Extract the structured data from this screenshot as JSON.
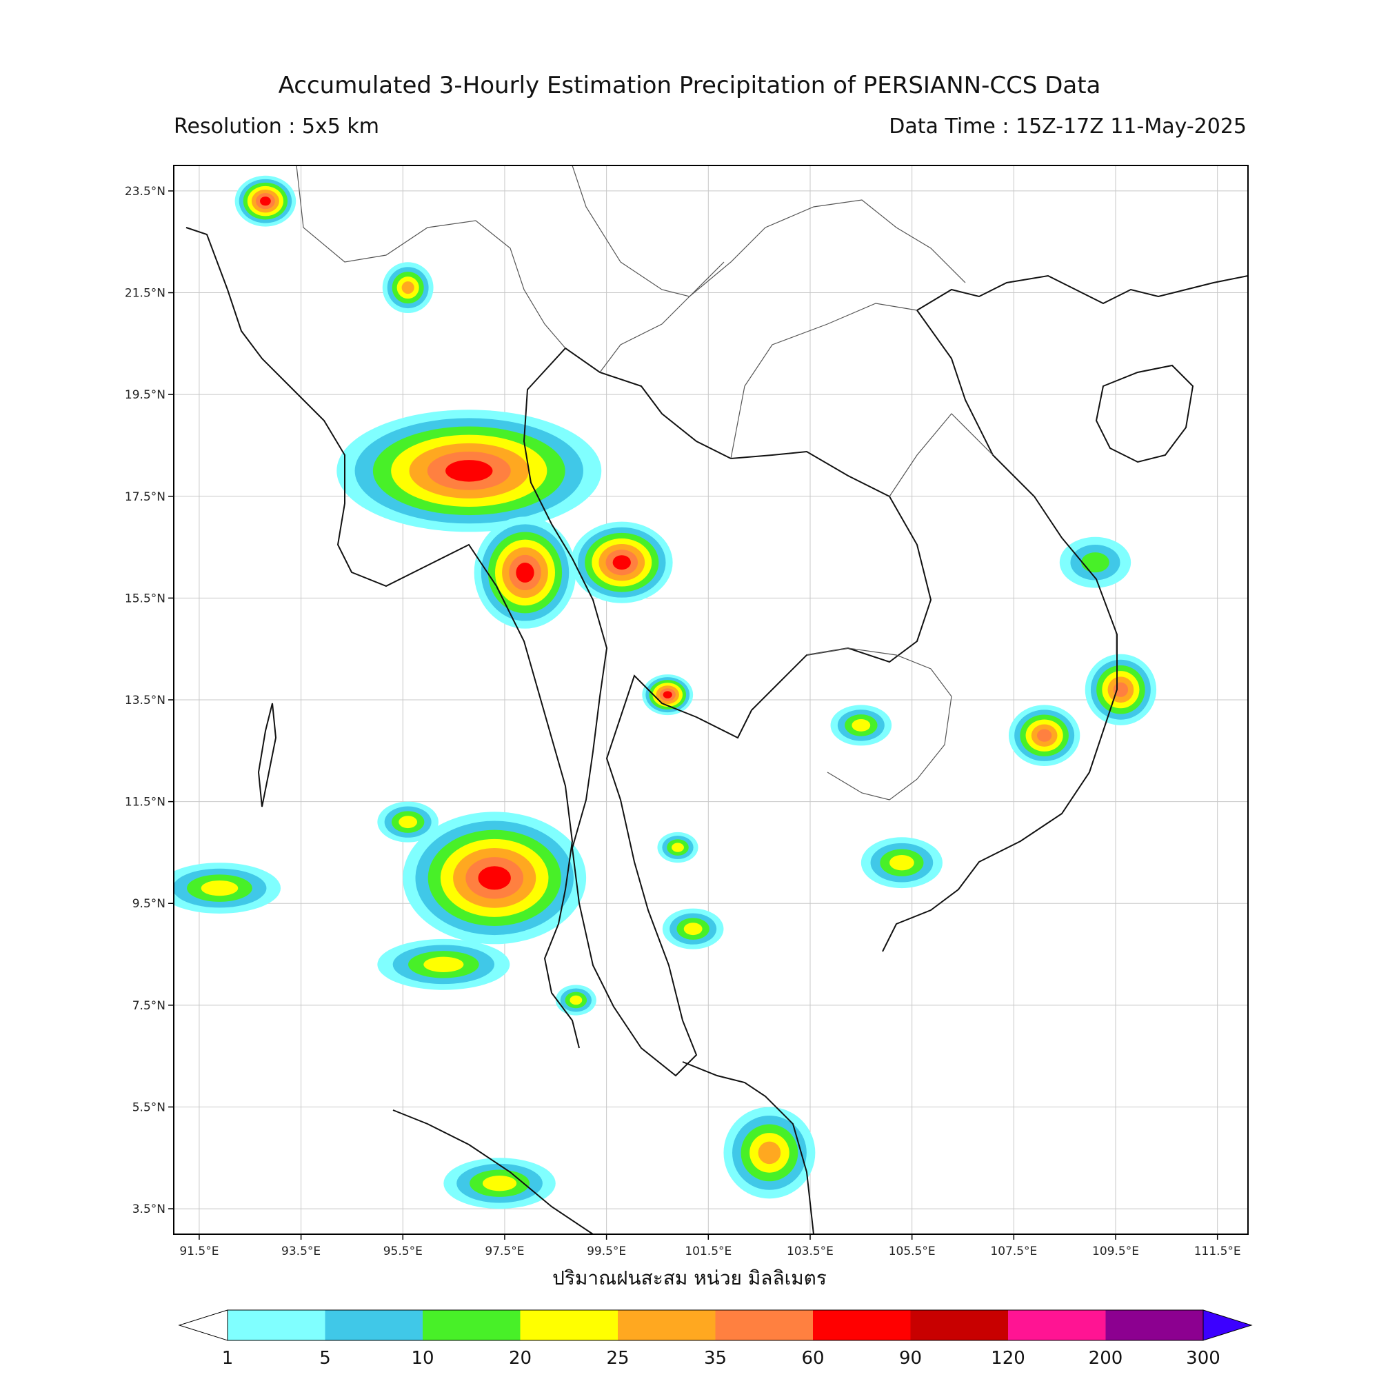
{
  "header": {
    "title": "Accumulated 3-Hourly Estimation Precipitation of PERSIANN-CCS Data",
    "resolution": "Resolution : 5x5 km",
    "data_time": "Data Time : 15Z-17Z 11-May-2025"
  },
  "axes": {
    "lon_ticks": [
      "91.5°E",
      "93.5°E",
      "95.5°E",
      "97.5°E",
      "99.5°E",
      "101.5°E",
      "103.5°E",
      "105.5°E",
      "107.5°E",
      "109.5°E",
      "111.5°E"
    ],
    "lat_ticks": [
      "23.5°N",
      "21.5°N",
      "19.5°N",
      "17.5°N",
      "15.5°N",
      "13.5°N",
      "11.5°N",
      "9.5°N",
      "7.5°N",
      "5.5°N",
      "3.5°N"
    ],
    "lon_values": [
      91.5,
      93.5,
      95.5,
      97.5,
      99.5,
      101.5,
      103.5,
      105.5,
      107.5,
      109.5,
      111.5
    ],
    "lat_values": [
      23.5,
      21.5,
      19.5,
      17.5,
      15.5,
      13.5,
      11.5,
      9.5,
      7.5,
      5.5,
      3.5
    ],
    "lon_range": [
      91.0,
      112.1
    ],
    "lat_range": [
      3.0,
      24.0
    ],
    "xlabel": "ปริมาณฝนสะสม หน่วย มิลลิเมตร"
  },
  "colorbar": {
    "levels": [
      "1",
      "5",
      "10",
      "20",
      "25",
      "35",
      "60",
      "90",
      "120",
      "200",
      "300"
    ],
    "colors": [
      "#80ffff",
      "#40c8e8",
      "#48f028",
      "#ffff00",
      "#ffa820",
      "#ff8040",
      "#ff0000",
      "#c80000",
      "#ff1493",
      "#8c0090"
    ],
    "extend_min_color": "#ffffff",
    "extend_max_color": "#3c00ff"
  },
  "rain_cells": [
    {
      "lon": 96.8,
      "lat": 18.0,
      "rx": 2.6,
      "ry": 1.2,
      "max_level": 6,
      "name": "myanmar-north-cell"
    },
    {
      "lon": 97.9,
      "lat": 16.0,
      "rx": 1.0,
      "ry": 1.1,
      "max_level": 6,
      "name": "myanmar-south-cell"
    },
    {
      "lon": 99.8,
      "lat": 16.2,
      "rx": 1.0,
      "ry": 0.8,
      "max_level": 6,
      "name": "thailand-west-cell"
    },
    {
      "lon": 100.7,
      "lat": 13.6,
      "rx": 0.5,
      "ry": 0.4,
      "max_level": 6,
      "name": "bangkok-cell"
    },
    {
      "lon": 97.3,
      "lat": 10.0,
      "rx": 1.8,
      "ry": 1.3,
      "max_level": 6,
      "name": "andaman-cell"
    },
    {
      "lon": 96.3,
      "lat": 8.3,
      "rx": 1.3,
      "ry": 0.5,
      "max_level": 3,
      "name": "andaman-south-cell"
    },
    {
      "lon": 109.6,
      "lat": 13.7,
      "rx": 0.7,
      "ry": 0.7,
      "max_level": 5,
      "name": "vietnam-coast-cell"
    },
    {
      "lon": 108.1,
      "lat": 12.8,
      "rx": 0.7,
      "ry": 0.6,
      "max_level": 5,
      "name": "vietnam-highland-cell"
    },
    {
      "lon": 105.3,
      "lat": 10.3,
      "rx": 0.8,
      "ry": 0.5,
      "max_level": 3,
      "name": "mekong-delta-cell"
    },
    {
      "lon": 102.7,
      "lat": 4.6,
      "rx": 0.9,
      "ry": 0.9,
      "max_level": 4,
      "name": "malaysia-cell"
    },
    {
      "lon": 97.4,
      "lat": 4.0,
      "rx": 1.1,
      "ry": 0.5,
      "max_level": 3,
      "name": "sumatra-cell"
    },
    {
      "lon": 91.9,
      "lat": 9.8,
      "rx": 1.2,
      "ry": 0.5,
      "max_level": 3,
      "name": "nicobar-cell"
    },
    {
      "lon": 101.2,
      "lat": 9.0,
      "rx": 0.6,
      "ry": 0.4,
      "max_level": 3,
      "name": "gulf-thailand-cell"
    },
    {
      "lon": 104.5,
      "lat": 13.0,
      "rx": 0.6,
      "ry": 0.4,
      "max_level": 3,
      "name": "cambodia-cell"
    },
    {
      "lon": 109.1,
      "lat": 16.2,
      "rx": 0.7,
      "ry": 0.5,
      "max_level": 2,
      "name": "scs-north-cell"
    },
    {
      "lon": 92.8,
      "lat": 23.3,
      "rx": 0.6,
      "ry": 0.5,
      "max_level": 6,
      "name": "bangladesh-cell"
    },
    {
      "lon": 95.6,
      "lat": 21.6,
      "rx": 0.5,
      "ry": 0.5,
      "max_level": 4,
      "name": "myanmar-central-cell"
    },
    {
      "lon": 98.9,
      "lat": 7.6,
      "rx": 0.4,
      "ry": 0.3,
      "max_level": 3,
      "name": "phuket-cell"
    },
    {
      "lon": 95.6,
      "lat": 11.1,
      "rx": 0.6,
      "ry": 0.4,
      "max_level": 3,
      "name": "andaman-west-cell"
    },
    {
      "lon": 100.9,
      "lat": 10.6,
      "rx": 0.4,
      "ry": 0.3,
      "max_level": 3,
      "name": "gulf-small-cell"
    }
  ]
}
